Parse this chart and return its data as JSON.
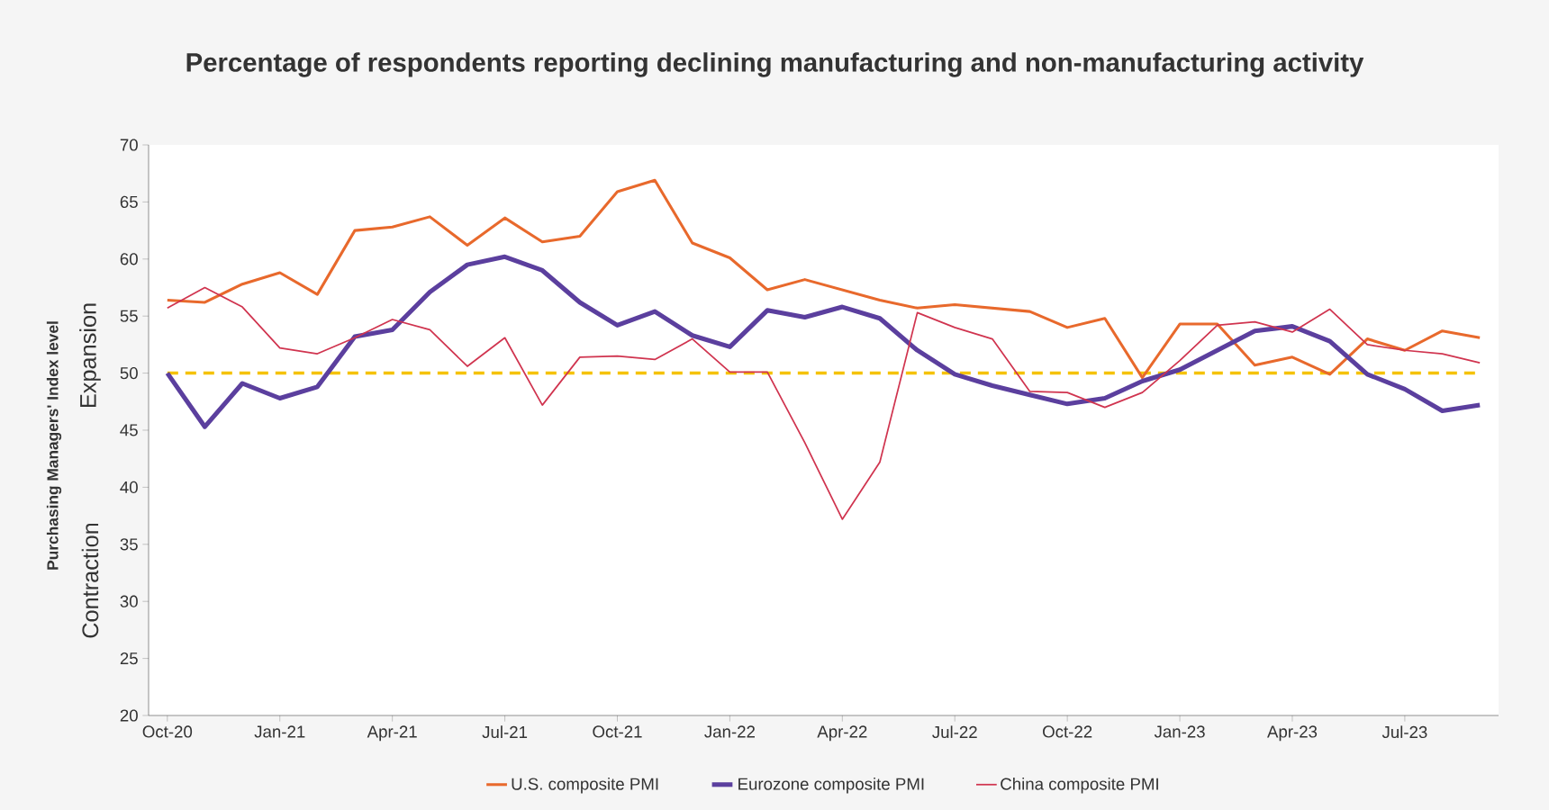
{
  "chart_data": {
    "type": "line",
    "title": "Percentage of respondents reporting declining manufacturing and non-manufacturing activity",
    "ylabel": "Purchasing Managers' Index level",
    "annotations": [
      "Expansion",
      "Contraction"
    ],
    "categories": [
      "Oct-20",
      null,
      null,
      "Jan-21",
      null,
      null,
      "Apr-21",
      null,
      null,
      "Jul-21",
      null,
      null,
      "Oct-21",
      null,
      null,
      "Jan-22",
      null,
      null,
      "Apr-22",
      null,
      null,
      "Jul-22",
      null,
      null,
      "Oct-22",
      null,
      null,
      "Jan-23",
      null,
      null,
      "Apr-23",
      null,
      null,
      "Jul-23",
      null,
      null
    ],
    "series": [
      {
        "name": "U.S. composite PMI",
        "color": "#e8692c",
        "values": [
          56.4,
          56.2,
          57.8,
          58.8,
          56.9,
          62.5,
          62.8,
          63.7,
          61.2,
          63.6,
          61.5,
          62.0,
          65.9,
          66.9,
          61.4,
          60.1,
          57.3,
          58.2,
          57.3,
          56.4,
          55.7,
          56.0,
          55.7,
          55.4,
          54.0,
          54.8,
          49.6,
          54.3,
          54.3,
          50.7,
          51.4,
          49.9,
          53.0,
          52.0,
          53.7,
          53.1
        ]
      },
      {
        "name": "Eurozone composite PMI",
        "color": "#5b3f9e",
        "values": [
          50.0,
          45.3,
          49.1,
          47.8,
          48.8,
          53.2,
          53.8,
          57.1,
          59.5,
          60.2,
          59.0,
          56.2,
          54.2,
          55.4,
          53.3,
          52.3,
          55.5,
          54.9,
          55.8,
          54.8,
          52.0,
          49.9,
          48.9,
          48.1,
          47.3,
          47.8,
          49.3,
          50.3,
          52.0,
          53.7,
          54.1,
          52.8,
          49.9,
          48.6,
          46.7,
          47.2
        ]
      },
      {
        "name": "China composite PMI",
        "color": "#d0344f",
        "values": [
          55.7,
          57.5,
          55.8,
          52.2,
          51.7,
          53.1,
          54.7,
          53.8,
          50.6,
          53.1,
          47.2,
          51.4,
          51.5,
          51.2,
          53.0,
          50.1,
          50.1,
          43.9,
          37.2,
          42.2,
          55.3,
          54.0,
          53.0,
          48.4,
          48.3,
          47.0,
          48.3,
          51.1,
          54.2,
          54.5,
          53.6,
          55.6,
          52.5,
          52.0,
          51.7,
          50.9
        ]
      }
    ],
    "ylim": [
      20,
      70
    ],
    "yticks": [
      20,
      25,
      30,
      35,
      40,
      45,
      50,
      55,
      60,
      65,
      70
    ],
    "ref_lines": [
      {
        "axis": "y",
        "value": 50,
        "color": "#f5c200",
        "line_style": "dashed"
      }
    ],
    "grid": false,
    "legend": "bottom",
    "marker": "none",
    "line_style": "solid"
  }
}
